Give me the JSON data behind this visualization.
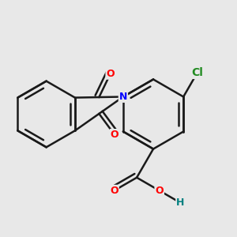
{
  "bg_color": "#e8e8e8",
  "bond_color": "#1a1a1a",
  "bond_width": 1.8,
  "O_color": "#ff0000",
  "N_color": "#0000ff",
  "Cl_color": "#228B22",
  "H_color": "#008080",
  "font_size": 9,
  "fig_size": [
    3.0,
    3.0
  ],
  "dpi": 100,
  "xlim": [
    -0.3,
    2.4
  ],
  "ylim": [
    -1.2,
    1.2
  ]
}
